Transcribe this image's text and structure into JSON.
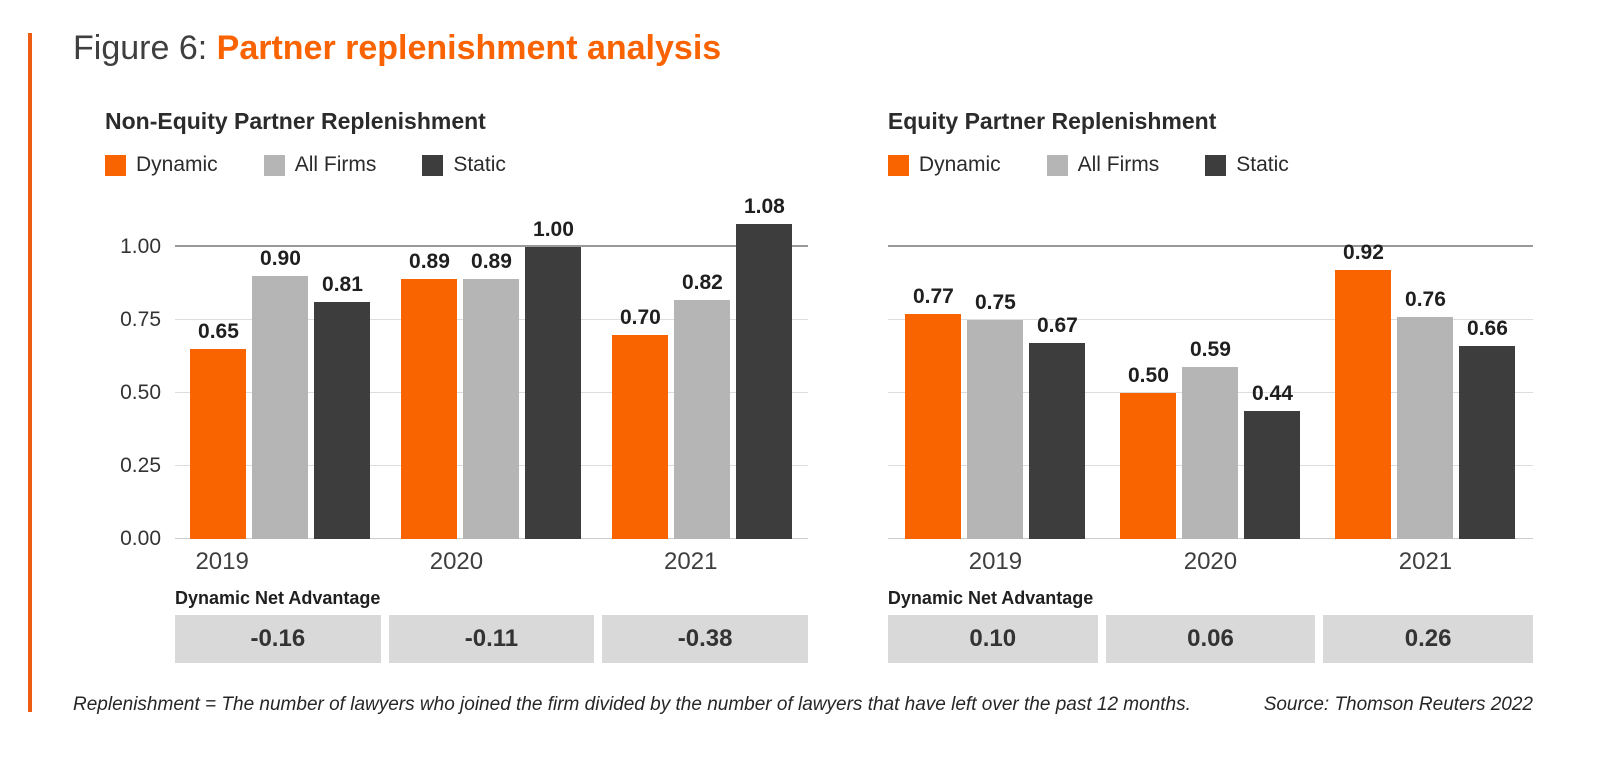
{
  "figure": {
    "label": "Figure 6:",
    "title": "Partner replenishment analysis"
  },
  "colors": {
    "accent_line": "#EE5B12",
    "title_gray": "#3F3F3F",
    "title_orange": "#F96302",
    "dynamic": "#FA6400",
    "all_firms": "#B5B5B5",
    "static": "#3D3D3D",
    "gridline": "#DDDDDD",
    "gridline_top": "#999999",
    "baseline": "#CCCCCC",
    "box_bg": "#D9D9D9"
  },
  "chart_data": [
    {
      "type": "bar",
      "title": "Non-Equity Partner Replenishment",
      "categories": [
        "2019",
        "2020",
        "2021"
      ],
      "series": [
        {
          "name": "Dynamic",
          "color_key": "dynamic",
          "values": [
            0.65,
            0.89,
            0.7
          ],
          "value_labels": [
            "0.65",
            "0.89",
            "0.70"
          ]
        },
        {
          "name": "All Firms",
          "color_key": "all_firms",
          "values": [
            0.9,
            0.89,
            0.82
          ],
          "value_labels": [
            "0.90",
            "0.89",
            "0.82"
          ]
        },
        {
          "name": "Static",
          "color_key": "static",
          "values": [
            0.81,
            1.0,
            1.08
          ],
          "value_labels": [
            "0.81",
            "1.00",
            "1.08"
          ]
        }
      ],
      "ylim": [
        0,
        1.0
      ],
      "y_axis": {
        "ticks": [
          0,
          0.25,
          0.5,
          0.75,
          1.0
        ],
        "labels": [
          "0.00",
          "0.25",
          "0.50",
          "0.75",
          "1.00"
        ],
        "show_labels": true
      },
      "legend_position": "top",
      "grid": true,
      "net_advantage": {
        "label": "Dynamic Net Advantage",
        "values": [
          "-0.16",
          "-0.11",
          "-0.38"
        ]
      }
    },
    {
      "type": "bar",
      "title": "Equity Partner Replenishment",
      "categories": [
        "2019",
        "2020",
        "2021"
      ],
      "series": [
        {
          "name": "Dynamic",
          "color_key": "dynamic",
          "values": [
            0.77,
            0.5,
            0.92
          ],
          "value_labels": [
            "0.77",
            "0.50",
            "0.92"
          ]
        },
        {
          "name": "All Firms",
          "color_key": "all_firms",
          "values": [
            0.75,
            0.59,
            0.76
          ],
          "value_labels": [
            "0.75",
            "0.59",
            "0.76"
          ]
        },
        {
          "name": "Static",
          "color_key": "static",
          "values": [
            0.67,
            0.44,
            0.66
          ],
          "value_labels": [
            "0.67",
            "0.44",
            "0.66"
          ]
        }
      ],
      "ylim": [
        0,
        1.0
      ],
      "y_axis": {
        "ticks": [
          0,
          0.25,
          0.5,
          0.75,
          1.0
        ],
        "labels": [],
        "show_labels": false
      },
      "legend_position": "top",
      "grid": true,
      "net_advantage": {
        "label": "Dynamic Net Advantage",
        "values": [
          "0.10",
          "0.06",
          "0.26"
        ]
      }
    }
  ],
  "footnote": {
    "definition": "Replenishment = The number of lawyers who joined the firm divided by the number of lawyers that have left over the past 12 months.",
    "source": "Source: Thomson Reuters 2022"
  }
}
